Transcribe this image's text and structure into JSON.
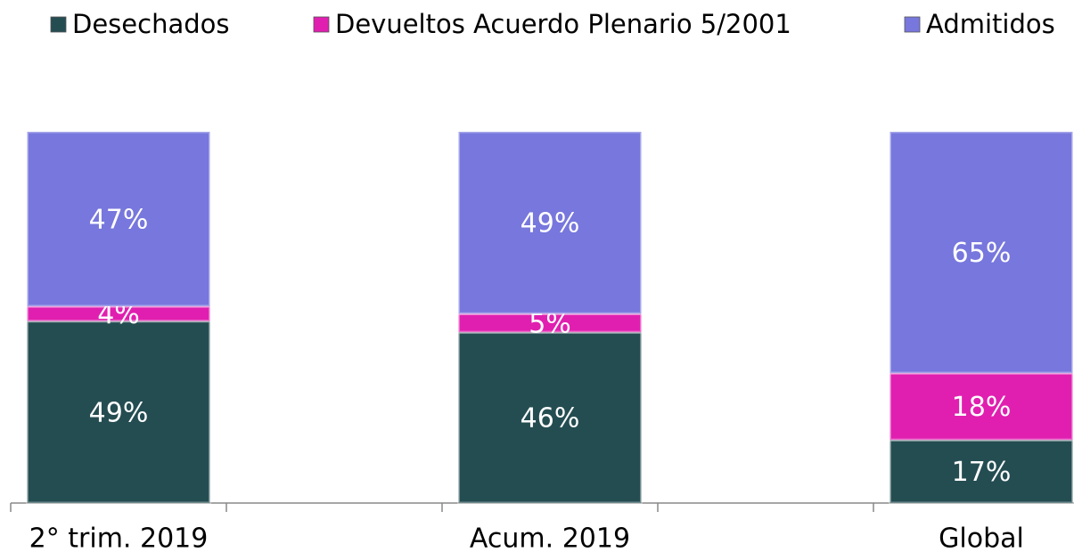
{
  "chart_data": {
    "type": "stacked_bar",
    "categories": [
      "2° trim. 2019",
      "Acum. 2019",
      "Global"
    ],
    "series": [
      {
        "name": "Desechados",
        "color": "#244d52",
        "values": [
          49,
          46,
          17
        ],
        "value_labels": [
          "49%",
          "46%",
          "17%"
        ]
      },
      {
        "name": "Devueltos Acuerdo Plenario 5/2001",
        "color": "#e01fb0",
        "values": [
          4,
          5,
          18
        ],
        "value_labels": [
          "4%",
          "5%",
          "18%"
        ]
      },
      {
        "name": "Admitidos",
        "color": "#7777dd",
        "values": [
          47,
          49,
          65
        ],
        "value_labels": [
          "47%",
          "49%",
          "65%"
        ]
      }
    ],
    "legend": "top"
  }
}
